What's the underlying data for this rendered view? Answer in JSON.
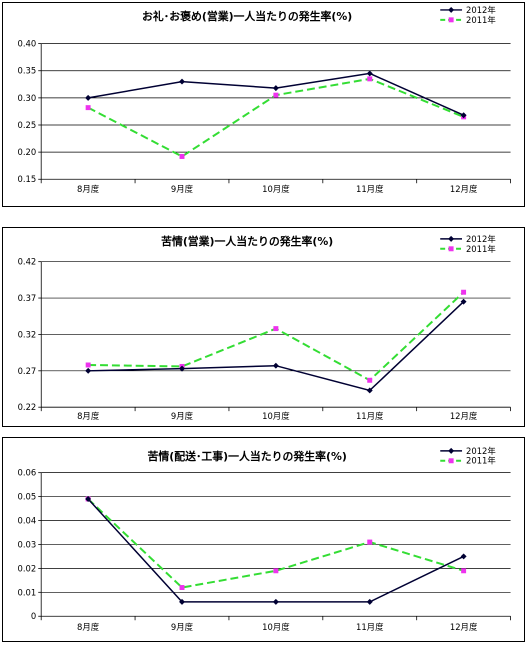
{
  "chart_data": [
    {
      "type": "line",
      "title": "お礼･お褒め(営業)一人当たりの発生率(%)",
      "categories": [
        "8月度",
        "9月度",
        "10月度",
        "11月度",
        "12月度"
      ],
      "ylim": [
        0.15,
        0.4
      ],
      "yticks": [
        "0.40",
        "0.35",
        "0.30",
        "0.25",
        "0.20",
        "0.15"
      ],
      "ytick_values": [
        0.4,
        0.35,
        0.3,
        0.25,
        0.2,
        0.15
      ],
      "grid": true,
      "legend": "top-right",
      "series": [
        {
          "name": "2012年",
          "color": "#000033",
          "dash": false,
          "values": [
            0.3,
            0.33,
            0.318,
            0.345,
            0.268
          ]
        },
        {
          "name": "2011年",
          "color": "#33dd33",
          "dash": true,
          "values": [
            0.282,
            0.192,
            0.305,
            0.335,
            0.265
          ]
        }
      ]
    },
    {
      "type": "line",
      "title": "苦情(営業)一人当たりの発生率(%)",
      "categories": [
        "8月度",
        "9月度",
        "10月度",
        "11月度",
        "12月度"
      ],
      "ylim": [
        0.22,
        0.42
      ],
      "yticks": [
        "0.42",
        "0.37",
        "0.32",
        "0.27",
        "0.22"
      ],
      "ytick_values": [
        0.42,
        0.37,
        0.32,
        0.27,
        0.22
      ],
      "grid": true,
      "legend": "top-right",
      "series": [
        {
          "name": "2012年",
          "color": "#000033",
          "dash": false,
          "values": [
            0.27,
            0.273,
            0.277,
            0.243,
            0.365
          ]
        },
        {
          "name": "2011年",
          "color": "#33dd33",
          "dash": true,
          "values": [
            0.278,
            0.276,
            0.328,
            0.257,
            0.378
          ]
        }
      ]
    },
    {
      "type": "line",
      "title": "苦情(配送･工事)一人当たりの発生率(%)",
      "categories": [
        "8月度",
        "9月度",
        "10月度",
        "11月度",
        "12月度"
      ],
      "ylim": [
        0,
        0.06
      ],
      "yticks": [
        "0.06",
        "0.05",
        "0.04",
        "0.03",
        "0.02",
        "0.01",
        "0"
      ],
      "ytick_values": [
        0.06,
        0.05,
        0.04,
        0.03,
        0.02,
        0.01,
        0
      ],
      "grid": true,
      "legend": "top-right",
      "series": [
        {
          "name": "2012年",
          "color": "#000033",
          "dash": false,
          "values": [
            0.049,
            0.006,
            0.006,
            0.006,
            0.025
          ]
        },
        {
          "name": "2011年",
          "color": "#33dd33",
          "dash": true,
          "values": [
            0.049,
            0.012,
            0.019,
            0.031,
            0.019
          ]
        }
      ]
    }
  ]
}
